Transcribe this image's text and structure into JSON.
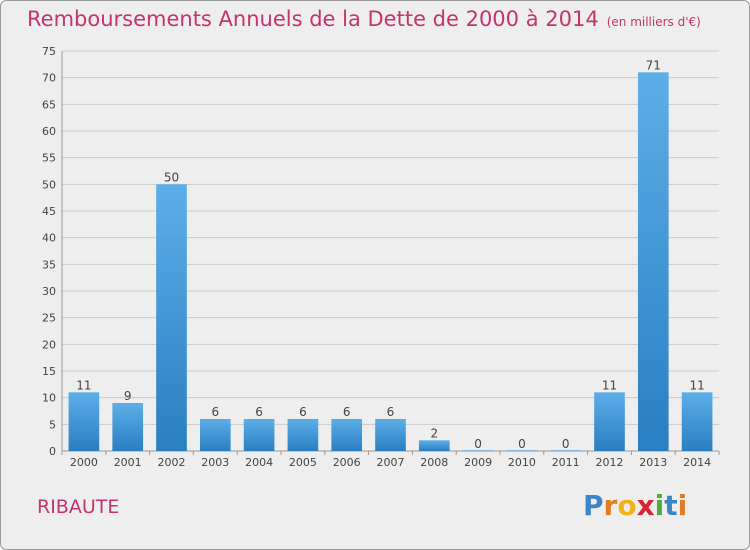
{
  "title": "Remboursements Annuels de la Dette de 2000 à 2014",
  "unit": "(en milliers d'€)",
  "commune": "RIBAUTE",
  "logo": {
    "text": "Proxiti",
    "letters": [
      {
        "ch": "P",
        "color": "#3a86c8"
      },
      {
        "ch": "r",
        "color": "#e67a1e"
      },
      {
        "ch": "o",
        "color": "#f2b21a"
      },
      {
        "ch": "x",
        "color": "#d8262e"
      },
      {
        "ch": "i",
        "color": "#55a83a"
      },
      {
        "ch": "t",
        "color": "#3a86c8"
      },
      {
        "ch": "i",
        "color": "#e67a1e"
      }
    ]
  },
  "colors": {
    "bar_light": "#5daee8",
    "bar_dark": "#2a7fc2",
    "title": "#c6336d",
    "grid": "#c9c9c9",
    "axis_text": "#444444"
  },
  "chart_data": {
    "type": "bar",
    "title": "Remboursements Annuels de la Dette de 2000 à 2014",
    "xlabel": "",
    "ylabel": "",
    "categories": [
      "2000",
      "2001",
      "2002",
      "2003",
      "2004",
      "2005",
      "2006",
      "2007",
      "2008",
      "2009",
      "2010",
      "2011",
      "2012",
      "2013",
      "2014"
    ],
    "values": [
      11,
      9,
      50,
      6,
      6,
      6,
      6,
      6,
      2,
      0,
      0,
      0,
      11,
      71,
      11
    ],
    "ylim": [
      0,
      75
    ],
    "yticks": [
      0,
      5,
      10,
      15,
      20,
      25,
      30,
      35,
      40,
      45,
      50,
      55,
      60,
      65,
      70,
      75
    ],
    "grid": true,
    "legend": "none"
  }
}
